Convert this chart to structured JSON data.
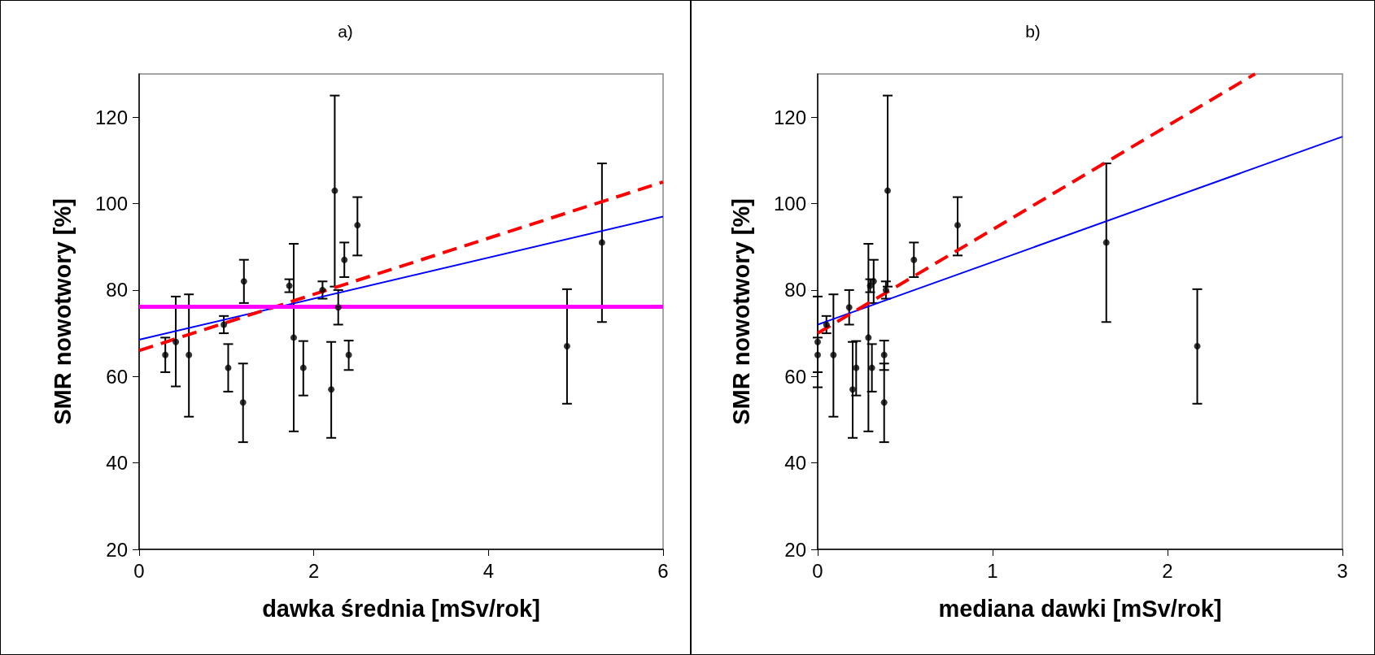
{
  "chart_data": [
    {
      "type": "scatter",
      "title": "a)",
      "xlabel": "dawka średnia [mSv/rok]",
      "ylabel": "SMR nowotwory [%]",
      "xlim": [
        0,
        6
      ],
      "xticks": [
        0,
        2,
        4,
        6
      ],
      "ylim": [
        20,
        130
      ],
      "yticks": [
        20,
        40,
        60,
        80,
        100,
        120
      ],
      "series": [
        {
          "color": "#000000",
          "marker": "circle",
          "x": [
            0.3,
            0.42,
            0.57,
            0.97,
            1.02,
            1.2,
            1.19,
            1.72,
            1.77,
            1.88,
            2.1,
            2.2,
            2.24,
            2.28,
            2.35,
            2.4,
            2.5,
            4.9,
            5.3
          ],
          "values": [
            65,
            68,
            65,
            72,
            62,
            82,
            54,
            81,
            69,
            62,
            80,
            57,
            103,
            76,
            87,
            65,
            95,
            67,
            91
          ],
          "errors": [
            [
              61,
              69
            ],
            [
              57.7,
              78.5
            ],
            [
              50.7,
              79
            ],
            [
              70,
              74
            ],
            [
              56.5,
              67.5
            ],
            [
              77,
              87
            ],
            [
              44.8,
              63
            ],
            [
              79.5,
              82.5
            ],
            [
              47.3,
              90.7
            ],
            [
              55.6,
              68.2
            ],
            [
              78,
              82
            ],
            [
              45.8,
              68
            ],
            [
              80.8,
              125
            ],
            [
              72,
              80
            ],
            [
              83,
              91
            ],
            [
              61.5,
              68.3
            ],
            [
              88,
              101.5
            ],
            [
              53.7,
              80.2
            ],
            [
              72.6,
              109.3
            ]
          ]
        },
        {
          "type": "line",
          "color": "#0000ff",
          "marker": "none",
          "x": [
            0,
            6
          ],
          "values": [
            68.5,
            97
          ],
          "line_style": "solid"
        },
        {
          "type": "line",
          "color": "#ff0000",
          "marker": "none",
          "x": [
            0,
            6
          ],
          "values": [
            66,
            105
          ],
          "line_style": "dashed"
        }
      ],
      "ref_lines": [
        {
          "axis": "y",
          "value": 76.2,
          "color": "#ff00ff"
        }
      ]
    },
    {
      "type": "scatter",
      "title": "b)",
      "xlabel": "mediana dawki [mSv/rok]",
      "ylabel": "SMR nowotwory [%]",
      "xlim": [
        0,
        3
      ],
      "xticks": [
        0,
        1,
        2,
        3
      ],
      "ylim": [
        20,
        130
      ],
      "yticks": [
        20,
        40,
        60,
        80,
        100,
        120
      ],
      "series": [
        {
          "color": "#000000",
          "marker": "circle",
          "x": [
            0,
            0,
            0.05,
            0.09,
            0.18,
            0.2,
            0.22,
            0.29,
            0.3,
            0.31,
            0.32,
            0.38,
            0.38,
            0.39,
            0.4,
            0.55,
            0.8,
            1.65,
            2.17
          ],
          "values": [
            68,
            65,
            72,
            65,
            76,
            57,
            62,
            69,
            81,
            62,
            82,
            65,
            54,
            80,
            103,
            87,
            95,
            91,
            67
          ],
          "errors": [
            [
              57.5,
              78.5
            ],
            [
              61,
              69
            ],
            [
              70,
              74
            ],
            [
              50.7,
              79
            ],
            [
              72,
              80
            ],
            [
              45.8,
              68
            ],
            [
              55.6,
              68.2
            ],
            [
              47.3,
              90.7
            ],
            [
              79.5,
              82.5
            ],
            [
              56.5,
              67.5
            ],
            [
              77,
              87
            ],
            [
              61.5,
              68.3
            ],
            [
              44.8,
              63
            ],
            [
              78,
              82
            ],
            [
              80.8,
              125
            ],
            [
              83,
              91
            ],
            [
              88,
              101.5
            ],
            [
              72.6,
              109.3
            ],
            [
              53.7,
              80.2
            ]
          ]
        },
        {
          "type": "line",
          "color": "#0000ff",
          "marker": "none",
          "x": [
            0,
            3
          ],
          "values": [
            72,
            115.5
          ],
          "line_style": "solid"
        },
        {
          "type": "line",
          "color": "#ff0000",
          "marker": "none",
          "x": [
            0,
            2.5
          ],
          "values": [
            70,
            130
          ],
          "line_style": "dashed"
        }
      ]
    }
  ]
}
